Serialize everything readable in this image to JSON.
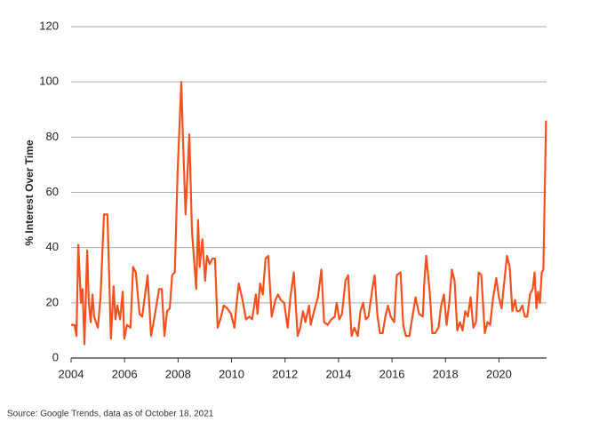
{
  "chart_data": {
    "type": "line",
    "y_label": "% Interest Over Time",
    "source": "Source: Google Trends, data as of October 18, 2021",
    "xlim": [
      2004,
      2021.78
    ],
    "xticks": [
      2004,
      2006,
      2008,
      2010,
      2012,
      2014,
      2016,
      2018,
      2020
    ],
    "ylim": [
      0,
      120
    ],
    "yticks": [
      0,
      20,
      40,
      60,
      80,
      100,
      120
    ],
    "grid": true,
    "color": "#f4511e",
    "x": [
      2004.0,
      2004.13,
      2004.2,
      2004.27,
      2004.37,
      2004.43,
      2004.5,
      2004.6,
      2004.66,
      2004.73,
      2004.8,
      2004.86,
      2005.0,
      2005.1,
      2005.23,
      2005.36,
      2005.49,
      2005.59,
      2005.66,
      2005.73,
      2005.83,
      2005.93,
      2005.99,
      2006.09,
      2006.22,
      2006.32,
      2006.42,
      2006.56,
      2006.66,
      2006.86,
      2006.99,
      2007.12,
      2007.29,
      2007.39,
      2007.49,
      2007.59,
      2007.69,
      2007.78,
      2007.88,
      2007.98,
      2008.12,
      2008.18,
      2008.28,
      2008.42,
      2008.52,
      2008.68,
      2008.75,
      2008.81,
      2008.91,
      2009.01,
      2009.08,
      2009.18,
      2009.28,
      2009.38,
      2009.48,
      2009.58,
      2009.71,
      2009.84,
      2009.98,
      2010.11,
      2010.18,
      2010.27,
      2010.41,
      2010.54,
      2010.67,
      2010.77,
      2010.91,
      2010.97,
      2011.07,
      2011.17,
      2011.27,
      2011.37,
      2011.5,
      2011.64,
      2011.74,
      2011.84,
      2011.97,
      2012.1,
      2012.2,
      2012.33,
      2012.47,
      2012.57,
      2012.67,
      2012.76,
      2012.9,
      2012.96,
      2013.06,
      2013.23,
      2013.36,
      2013.46,
      2013.59,
      2013.73,
      2013.86,
      2013.93,
      2014.03,
      2014.13,
      2014.26,
      2014.36,
      2014.49,
      2014.59,
      2014.72,
      2014.82,
      2014.92,
      2015.02,
      2015.12,
      2015.25,
      2015.35,
      2015.45,
      2015.55,
      2015.65,
      2015.75,
      2015.85,
      2015.95,
      2016.08,
      2016.18,
      2016.32,
      2016.42,
      2016.52,
      2016.65,
      2016.78,
      2016.88,
      2017.01,
      2017.15,
      2017.21,
      2017.28,
      2017.41,
      2017.51,
      2017.61,
      2017.74,
      2017.84,
      2017.94,
      2018.04,
      2018.14,
      2018.24,
      2018.34,
      2018.44,
      2018.54,
      2018.64,
      2018.74,
      2018.84,
      2018.94,
      2019.04,
      2019.14,
      2019.24,
      2019.34,
      2019.47,
      2019.57,
      2019.67,
      2019.77,
      2019.9,
      2020.0,
      2020.1,
      2020.2,
      2020.3,
      2020.4,
      2020.5,
      2020.6,
      2020.67,
      2020.77,
      2020.87,
      2020.97,
      2021.06,
      2021.16,
      2021.26,
      2021.33,
      2021.4,
      2021.46,
      2021.53,
      2021.6,
      2021.66,
      2021.76
    ],
    "values": [
      12,
      12,
      8,
      41,
      20,
      25,
      5,
      39,
      20,
      13,
      23,
      15,
      11,
      22,
      52,
      52,
      7,
      26,
      14,
      19,
      14,
      24,
      7,
      12,
      11,
      33,
      31,
      16,
      15,
      30,
      8,
      15,
      25,
      25,
      8,
      17,
      18,
      30,
      31,
      67,
      100,
      80,
      52,
      81,
      46,
      25,
      50,
      33,
      43,
      28,
      37,
      34,
      36,
      36,
      11,
      14,
      19,
      18,
      16,
      11,
      19,
      27,
      21,
      14,
      15,
      14,
      23,
      16,
      27,
      23,
      36,
      37,
      15,
      21,
      23,
      21,
      20,
      11,
      22,
      31,
      8,
      11,
      17,
      13,
      19,
      12,
      16,
      22,
      32,
      13,
      12,
      14,
      15,
      20,
      14,
      16,
      28,
      30,
      8,
      11,
      8,
      17,
      20,
      14,
      15,
      24,
      30,
      16,
      9,
      9,
      15,
      19,
      15,
      13,
      30,
      31,
      12,
      8,
      8,
      16,
      22,
      16,
      15,
      28,
      37,
      24,
      9,
      9,
      11,
      19,
      23,
      12,
      20,
      32,
      28,
      10,
      13,
      10,
      17,
      15,
      22,
      11,
      13,
      31,
      30,
      9,
      13,
      12,
      21,
      29,
      22,
      18,
      28,
      37,
      33,
      17,
      21,
      17,
      17,
      19,
      15,
      15,
      23,
      25,
      31,
      18,
      24,
      20,
      31,
      32,
      86
    ]
  }
}
